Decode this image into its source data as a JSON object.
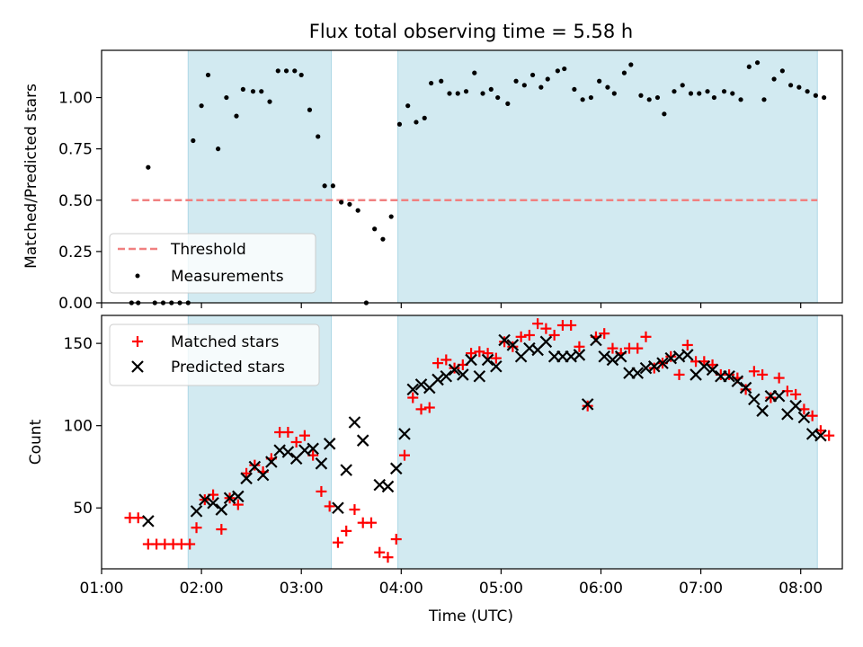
{
  "chart_data": [
    {
      "type": "scatter",
      "title": "Flux total observing time = 5.58 h",
      "xlabel": "",
      "ylabel": "Matched/Predicted stars",
      "ylim": [
        0,
        1.23
      ],
      "yticks": [
        0.0,
        0.25,
        0.5,
        0.75,
        1.0
      ],
      "ytick_labels": [
        "0.00",
        "0.25",
        "0.50",
        "0.75",
        "1.00"
      ],
      "shaded_intervals": [
        [
          "01:52",
          "03:18"
        ],
        [
          "03:58",
          "08:10"
        ]
      ],
      "threshold": {
        "name": "Threshold",
        "value": 0.5,
        "x_start": "01:18",
        "x_end": "08:10",
        "color": "#f08080"
      },
      "series": [
        {
          "name": "Measurements",
          "color": "#000000",
          "points": [
            [
              "01:18",
              0.0
            ],
            [
              "01:22",
              0.0
            ],
            [
              "01:28",
              0.66
            ],
            [
              "01:32",
              0.0
            ],
            [
              "01:37",
              0.0
            ],
            [
              "01:42",
              0.0
            ],
            [
              "01:47",
              0.0
            ],
            [
              "01:52",
              0.0
            ],
            [
              "01:55",
              0.79
            ],
            [
              "02:00",
              0.96
            ],
            [
              "02:04",
              1.11
            ],
            [
              "02:10",
              0.75
            ],
            [
              "02:15",
              1.0
            ],
            [
              "02:21",
              0.91
            ],
            [
              "02:25",
              1.04
            ],
            [
              "02:31",
              1.03
            ],
            [
              "02:36",
              1.03
            ],
            [
              "02:41",
              0.98
            ],
            [
              "02:46",
              1.13
            ],
            [
              "02:51",
              1.13
            ],
            [
              "02:56",
              1.13
            ],
            [
              "03:00",
              1.11
            ],
            [
              "03:05",
              0.94
            ],
            [
              "03:10",
              0.81
            ],
            [
              "03:14",
              0.57
            ],
            [
              "03:19",
              0.57
            ],
            [
              "03:24",
              0.49
            ],
            [
              "03:29",
              0.48
            ],
            [
              "03:34",
              0.45
            ],
            [
              "03:39",
              0.0
            ],
            [
              "03:44",
              0.36
            ],
            [
              "03:49",
              0.31
            ],
            [
              "03:54",
              0.42
            ],
            [
              "03:59",
              0.87
            ],
            [
              "04:04",
              0.96
            ],
            [
              "04:09",
              0.88
            ],
            [
              "04:14",
              0.9
            ],
            [
              "04:18",
              1.07
            ],
            [
              "04:24",
              1.08
            ],
            [
              "04:29",
              1.02
            ],
            [
              "04:34",
              1.02
            ],
            [
              "04:39",
              1.03
            ],
            [
              "04:44",
              1.12
            ],
            [
              "04:49",
              1.02
            ],
            [
              "04:54",
              1.04
            ],
            [
              "04:58",
              1.0
            ],
            [
              "05:04",
              0.97
            ],
            [
              "05:09",
              1.08
            ],
            [
              "05:14",
              1.06
            ],
            [
              "05:19",
              1.11
            ],
            [
              "05:24",
              1.05
            ],
            [
              "05:28",
              1.09
            ],
            [
              "05:34",
              1.13
            ],
            [
              "05:38",
              1.14
            ],
            [
              "05:44",
              1.04
            ],
            [
              "05:49",
              0.99
            ],
            [
              "05:54",
              1.0
            ],
            [
              "05:59",
              1.08
            ],
            [
              "06:04",
              1.05
            ],
            [
              "06:08",
              1.02
            ],
            [
              "06:14",
              1.12
            ],
            [
              "06:18",
              1.16
            ],
            [
              "06:24",
              1.01
            ],
            [
              "06:29",
              0.99
            ],
            [
              "06:34",
              1.0
            ],
            [
              "06:38",
              0.92
            ],
            [
              "06:44",
              1.03
            ],
            [
              "06:49",
              1.06
            ],
            [
              "06:54",
              1.02
            ],
            [
              "06:59",
              1.02
            ],
            [
              "07:04",
              1.03
            ],
            [
              "07:08",
              1.0
            ],
            [
              "07:14",
              1.03
            ],
            [
              "07:19",
              1.02
            ],
            [
              "07:24",
              0.99
            ],
            [
              "07:29",
              1.15
            ],
            [
              "07:34",
              1.17
            ],
            [
              "07:38",
              0.99
            ],
            [
              "07:44",
              1.09
            ],
            [
              "07:49",
              1.13
            ],
            [
              "07:54",
              1.06
            ],
            [
              "07:59",
              1.05
            ],
            [
              "08:04",
              1.03
            ],
            [
              "08:09",
              1.01
            ],
            [
              "08:14",
              1.0
            ]
          ]
        }
      ],
      "legend": {
        "placement": "lower-left",
        "entries": [
          "Threshold",
          "Measurements"
        ]
      },
      "grid": false
    },
    {
      "type": "scatter",
      "title": "",
      "xlabel": "Time (UTC)",
      "ylabel": "Count",
      "ylim": [
        13,
        167
      ],
      "yticks": [
        50,
        100,
        150
      ],
      "ytick_labels": [
        "50",
        "100",
        "150"
      ],
      "xlim": [
        "01:00",
        "08:25"
      ],
      "xticks": [
        "01:00",
        "02:00",
        "03:00",
        "04:00",
        "05:00",
        "06:00",
        "07:00",
        "08:00"
      ],
      "xtick_labels": [
        "01:00",
        "02:00",
        "03:00",
        "04:00",
        "05:00",
        "06:00",
        "07:00",
        "08:00"
      ],
      "shaded_intervals": [
        [
          "01:52",
          "03:18"
        ],
        [
          "03:58",
          "08:10"
        ]
      ],
      "series": [
        {
          "name": "Matched stars",
          "marker": "plus",
          "color": "#ff0000",
          "points": [
            [
              "01:17",
              44
            ],
            [
              "01:22",
              44
            ],
            [
              "01:28",
              28
            ],
            [
              "01:33",
              28
            ],
            [
              "01:38",
              28
            ],
            [
              "01:43",
              28
            ],
            [
              "01:48",
              28
            ],
            [
              "01:53",
              28
            ],
            [
              "01:57",
              38
            ],
            [
              "02:02",
              55
            ],
            [
              "02:07",
              58
            ],
            [
              "02:12",
              37
            ],
            [
              "02:17",
              56
            ],
            [
              "02:22",
              52
            ],
            [
              "02:27",
              71
            ],
            [
              "02:32",
              76
            ],
            [
              "02:37",
              72
            ],
            [
              "02:42",
              80
            ],
            [
              "02:47",
              96
            ],
            [
              "02:52",
              96
            ],
            [
              "02:57",
              90
            ],
            [
              "03:02",
              94
            ],
            [
              "03:07",
              82
            ],
            [
              "03:12",
              60
            ],
            [
              "03:17",
              51
            ],
            [
              "03:22",
              29
            ],
            [
              "03:27",
              36
            ],
            [
              "03:32",
              49
            ],
            [
              "03:37",
              41
            ],
            [
              "03:42",
              41
            ],
            [
              "03:47",
              23
            ],
            [
              "03:52",
              20
            ],
            [
              "03:57",
              31
            ],
            [
              "04:02",
              82
            ],
            [
              "04:07",
              117
            ],
            [
              "04:12",
              110
            ],
            [
              "04:17",
              111
            ],
            [
              "04:22",
              138
            ],
            [
              "04:27",
              140
            ],
            [
              "04:32",
              135
            ],
            [
              "04:37",
              137
            ],
            [
              "04:42",
              144
            ],
            [
              "04:47",
              145
            ],
            [
              "04:52",
              144
            ],
            [
              "04:57",
              141
            ],
            [
              "05:02",
              151
            ],
            [
              "05:07",
              148
            ],
            [
              "05:12",
              154
            ],
            [
              "05:17",
              155
            ],
            [
              "05:22",
              162
            ],
            [
              "05:27",
              159
            ],
            [
              "05:32",
              155
            ],
            [
              "05:37",
              161
            ],
            [
              "05:42",
              161
            ],
            [
              "05:47",
              148
            ],
            [
              "05:52",
              112
            ],
            [
              "05:57",
              154
            ],
            [
              "06:02",
              156
            ],
            [
              "06:07",
              147
            ],
            [
              "06:12",
              144
            ],
            [
              "06:17",
              147
            ],
            [
              "06:22",
              147
            ],
            [
              "06:27",
              154
            ],
            [
              "06:32",
              135
            ],
            [
              "06:37",
              138
            ],
            [
              "06:42",
              142
            ],
            [
              "06:47",
              131
            ],
            [
              "06:52",
              149
            ],
            [
              "06:57",
              139
            ],
            [
              "07:02",
              139
            ],
            [
              "07:07",
              137
            ],
            [
              "07:12",
              131
            ],
            [
              "07:17",
              131
            ],
            [
              "07:22",
              129
            ],
            [
              "07:27",
              122
            ],
            [
              "07:32",
              133
            ],
            [
              "07:37",
              131
            ],
            [
              "07:42",
              117
            ],
            [
              "07:47",
              129
            ],
            [
              "07:52",
              121
            ],
            [
              "07:57",
              119
            ],
            [
              "08:02",
              110
            ],
            [
              "08:07",
              106
            ],
            [
              "08:12",
              97
            ],
            [
              "08:17",
              94
            ]
          ]
        },
        {
          "name": "Predicted stars",
          "marker": "x",
          "color": "#000000",
          "points": [
            [
              "01:28",
              42
            ],
            [
              "01:57",
              48
            ],
            [
              "02:02",
              55
            ],
            [
              "02:07",
              53
            ],
            [
              "02:12",
              49
            ],
            [
              "02:17",
              56
            ],
            [
              "02:22",
              57
            ],
            [
              "02:27",
              68
            ],
            [
              "02:32",
              75
            ],
            [
              "02:37",
              70
            ],
            [
              "02:42",
              78
            ],
            [
              "02:47",
              85
            ],
            [
              "02:52",
              84
            ],
            [
              "02:57",
              80
            ],
            [
              "03:02",
              85
            ],
            [
              "03:07",
              86
            ],
            [
              "03:12",
              77
            ],
            [
              "03:17",
              89
            ],
            [
              "03:22",
              50
            ],
            [
              "03:27",
              73
            ],
            [
              "03:32",
              102
            ],
            [
              "03:37",
              91
            ],
            [
              "03:47",
              64
            ],
            [
              "03:52",
              63
            ],
            [
              "03:57",
              74
            ],
            [
              "04:02",
              95
            ],
            [
              "04:07",
              122
            ],
            [
              "04:12",
              125
            ],
            [
              "04:17",
              123
            ],
            [
              "04:22",
              128
            ],
            [
              "04:27",
              130
            ],
            [
              "04:32",
              134
            ],
            [
              "04:37",
              131
            ],
            [
              "04:42",
              140
            ],
            [
              "04:47",
              130
            ],
            [
              "04:52",
              140
            ],
            [
              "04:57",
              136
            ],
            [
              "05:02",
              152
            ],
            [
              "05:07",
              149
            ],
            [
              "05:12",
              142
            ],
            [
              "05:17",
              147
            ],
            [
              "05:22",
              146
            ],
            [
              "05:27",
              151
            ],
            [
              "05:32",
              142
            ],
            [
              "05:37",
              142
            ],
            [
              "05:42",
              142
            ],
            [
              "05:47",
              143
            ],
            [
              "05:52",
              113
            ],
            [
              "05:57",
              152
            ],
            [
              "06:02",
              142
            ],
            [
              "06:07",
              140
            ],
            [
              "06:12",
              142
            ],
            [
              "06:17",
              132
            ],
            [
              "06:22",
              132
            ],
            [
              "06:27",
              135
            ],
            [
              "06:32",
              136
            ],
            [
              "06:37",
              138
            ],
            [
              "06:42",
              141
            ],
            [
              "06:47",
              142
            ],
            [
              "06:52",
              143
            ],
            [
              "06:57",
              131
            ],
            [
              "07:02",
              136
            ],
            [
              "07:07",
              134
            ],
            [
              "07:12",
              130
            ],
            [
              "07:17",
              130
            ],
            [
              "07:22",
              127
            ],
            [
              "07:27",
              123
            ],
            [
              "07:32",
              116
            ],
            [
              "07:37",
              109
            ],
            [
              "07:42",
              118
            ],
            [
              "07:47",
              118
            ],
            [
              "07:52",
              107
            ],
            [
              "07:57",
              112
            ],
            [
              "08:02",
              105
            ],
            [
              "08:07",
              95
            ],
            [
              "08:12",
              94
            ]
          ]
        }
      ],
      "legend": {
        "placement": "top-left",
        "entries": [
          "Matched stars",
          "Predicted stars"
        ]
      },
      "grid": false
    }
  ],
  "colors": {
    "shade": "#add8e6",
    "threshold": "#f08080",
    "measurements": "#000000",
    "matched": "#ff0000",
    "predicted": "#000000"
  }
}
